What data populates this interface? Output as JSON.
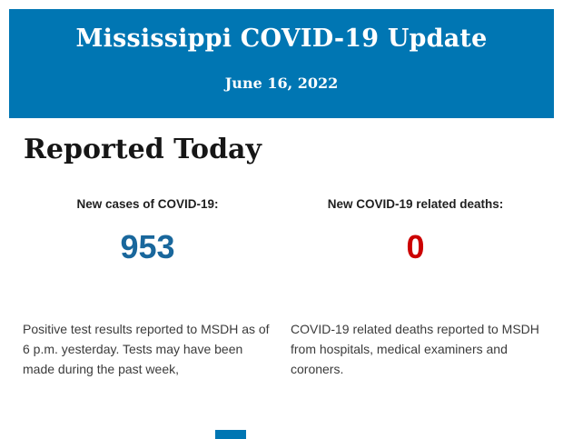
{
  "header": {
    "title": "Mississippi COVID-19 Update",
    "date": "June 16, 2022",
    "bg_color": "#0076b3",
    "text_color": "#ffffff"
  },
  "section": {
    "heading": "Reported Today"
  },
  "stats": [
    {
      "label": "New cases of COVID-19:",
      "value": "953",
      "value_color": "#19679c",
      "description": "Positive test results reported to MSDH as of 6 p.m. yesterday. Tests may have been made during the past week,"
    },
    {
      "label": "New COVID-19 related deaths:",
      "value": "0",
      "value_color": "#cc0000",
      "description": "COVID-19 related deaths reported to MSDH from hospitals, medical examiners and coroners."
    }
  ],
  "footer": {
    "fragment_color": "#0076b3"
  }
}
